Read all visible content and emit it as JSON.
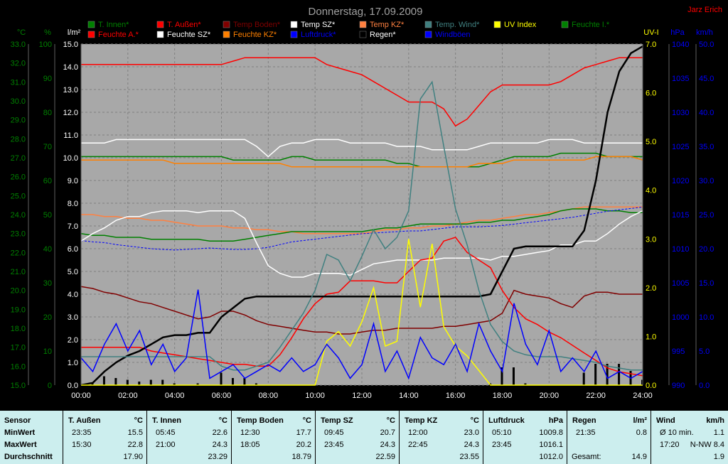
{
  "title": "Donnerstag, 17.09.2009",
  "author": "Jarz Erich",
  "legend": [
    {
      "label": "T. Innen*",
      "color": "#008000"
    },
    {
      "label": "T. Außen*",
      "color": "#ff0000"
    },
    {
      "label": "Temp Boden*",
      "color": "#800000"
    },
    {
      "label": "Temp SZ*",
      "color": "#ffffff"
    },
    {
      "label": "Temp KZ*",
      "color": "#ff8040"
    },
    {
      "label": "Temp. Wind*",
      "color": "#408080"
    },
    {
      "label": "UV Index",
      "color": "#ffff00"
    },
    {
      "label": "Feuchte I.*",
      "color": "#008000"
    },
    {
      "label": "Feuchte A.*",
      "color": "#ff0000"
    },
    {
      "label": "Feuchte SZ*",
      "color": "#ffffff"
    },
    {
      "label": "Feuchte KZ*",
      "color": "#ff8000"
    },
    {
      "label": "Luftdruck*",
      "color": "#0000ff"
    },
    {
      "label": "Regen*",
      "color": "#000000"
    },
    {
      "label": "Windböen",
      "color": "#0000ff"
    }
  ],
  "chart_data": {
    "type": "line",
    "x": [
      "00:00",
      "00:30",
      "01:00",
      "01:30",
      "02:00",
      "02:30",
      "03:00",
      "03:30",
      "04:00",
      "04:30",
      "05:00",
      "05:30",
      "06:00",
      "06:30",
      "07:00",
      "07:30",
      "08:00",
      "08:30",
      "09:00",
      "09:30",
      "10:00",
      "10:30",
      "11:00",
      "11:30",
      "12:00",
      "12:30",
      "13:00",
      "13:30",
      "14:00",
      "14:30",
      "15:00",
      "15:30",
      "16:00",
      "16:30",
      "17:00",
      "17:30",
      "18:00",
      "18:30",
      "19:00",
      "19:30",
      "20:00",
      "20:30",
      "21:00",
      "21:30",
      "22:00",
      "22:30",
      "23:00",
      "23:30",
      "24:00"
    ],
    "xticks": [
      "00:00",
      "02:00",
      "04:00",
      "06:00",
      "08:00",
      "10:00",
      "12:00",
      "14:00",
      "16:00",
      "18:00",
      "20:00",
      "22:00",
      "24:00"
    ],
    "axes": [
      {
        "unit": "°C",
        "min": 15,
        "max": 33,
        "ticks": [
          "15.0",
          "16.0",
          "17.0",
          "18.0",
          "19.0",
          "20.0",
          "21.0",
          "22.0",
          "23.0",
          "24.0",
          "25.0",
          "26.0",
          "27.0",
          "28.0",
          "29.0",
          "30.0",
          "31.0",
          "32.0",
          "33.0"
        ],
        "color": "#008000"
      },
      {
        "unit": "%",
        "min": 0,
        "max": 100,
        "ticks": [
          "0",
          "10",
          "20",
          "30",
          "40",
          "50",
          "60",
          "70",
          "80",
          "90",
          "100"
        ],
        "color": "#008000"
      },
      {
        "unit": "l/m²",
        "min": 0,
        "max": 15,
        "ticks": [
          "0.0",
          "1.0",
          "2.0",
          "3.0",
          "4.0",
          "5.0",
          "6.0",
          "7.0",
          "8.0",
          "9.0",
          "10.0",
          "11.0",
          "12.0",
          "13.0",
          "14.0",
          "15.0"
        ],
        "color": "#ffffff"
      },
      {
        "unit": "UV-I",
        "min": 0,
        "max": 7,
        "ticks": [
          "0.0",
          "1.0",
          "2.0",
          "3.0",
          "4.0",
          "5.0",
          "6.0",
          "7.0"
        ],
        "color": "#ffff00"
      },
      {
        "unit": "hPa",
        "min": 990,
        "max": 1040,
        "ticks": [
          "990",
          "995",
          "1000",
          "1005",
          "1010",
          "1015",
          "1020",
          "1025",
          "1030",
          "1035",
          "1040"
        ],
        "color": "#0000ff"
      },
      {
        "unit": "km/h",
        "min": 0,
        "max": 50,
        "ticks": [
          "0.0",
          "5.0",
          "10.0",
          "15.0",
          "20.0",
          "25.0",
          "30.0",
          "35.0",
          "40.0",
          "45.0",
          "50.0"
        ],
        "color": "#0000ff"
      }
    ],
    "series": [
      {
        "name": "Feuchte A.*",
        "axis": 1,
        "color": "#ff0000",
        "values": [
          94,
          94,
          94,
          94,
          94,
          94,
          94,
          94,
          94,
          94,
          94,
          94,
          94,
          95,
          96,
          96,
          96,
          96,
          96,
          96,
          96,
          94,
          93,
          92,
          91,
          89,
          87,
          85,
          83,
          83,
          83,
          81,
          76,
          78,
          82,
          86,
          88,
          88,
          88,
          88,
          88,
          89,
          91,
          93,
          94,
          95,
          96,
          96,
          96
        ]
      },
      {
        "name": "Feuchte SZ*",
        "axis": 1,
        "color": "#ffffff",
        "values": [
          71,
          71,
          71,
          72,
          72,
          72,
          72,
          72,
          72,
          72,
          72,
          72,
          72,
          72,
          72,
          70,
          67,
          70,
          71,
          71,
          72,
          72,
          72,
          71,
          71,
          71,
          71,
          70,
          70,
          70,
          69,
          69,
          69,
          69,
          70,
          71,
          71,
          71,
          71,
          71,
          72,
          72,
          72,
          71,
          71,
          71,
          71,
          71,
          71
        ]
      },
      {
        "name": "Feuchte I.*",
        "axis": 1,
        "color": "#008000",
        "values": [
          67,
          67,
          67,
          67,
          67,
          67,
          67,
          67,
          67,
          67,
          67,
          67,
          67,
          66,
          66,
          66,
          66,
          66,
          67,
          67,
          66,
          66,
          66,
          66,
          66,
          66,
          66,
          65,
          65,
          64,
          64,
          64,
          64,
          64,
          64,
          65,
          66,
          67,
          67,
          67,
          67,
          68,
          68,
          68,
          68,
          67,
          67,
          67,
          67
        ]
      },
      {
        "name": "Feuchte KZ*",
        "axis": 1,
        "color": "#ff8000",
        "values": [
          66,
          66,
          66,
          66,
          66,
          66,
          66,
          66,
          65,
          65,
          65,
          65,
          65,
          65,
          65,
          65,
          65,
          65,
          64,
          64,
          64,
          64,
          64,
          64,
          64,
          64,
          64,
          64,
          64,
          64,
          64,
          64,
          64,
          64,
          65,
          65,
          65,
          66,
          66,
          66,
          66,
          66,
          66,
          66,
          67,
          67,
          67,
          67,
          66
        ]
      },
      {
        "name": "Temp KZ*",
        "axis": 0,
        "color": "#ff8040",
        "values": [
          24.0,
          24.0,
          23.9,
          23.9,
          23.8,
          23.8,
          23.7,
          23.7,
          23.6,
          23.5,
          23.4,
          23.4,
          23.4,
          23.3,
          23.3,
          23.2,
          23.2,
          23.1,
          23.1,
          23.0,
          23.0,
          23.0,
          23.0,
          23.0,
          23.0,
          23.1,
          23.2,
          23.2,
          23.3,
          23.3,
          23.4,
          23.4,
          23.5,
          23.6,
          23.7,
          23.7,
          23.8,
          23.9,
          24.0,
          24.0,
          24.1,
          24.2,
          24.3,
          24.4,
          24.4,
          24.4,
          24.4,
          24.4,
          24.4
        ]
      },
      {
        "name": "T. Innen*",
        "axis": 0,
        "color": "#008000",
        "values": [
          23.0,
          22.9,
          22.9,
          22.8,
          22.8,
          22.8,
          22.7,
          22.7,
          22.7,
          22.7,
          22.7,
          22.6,
          22.6,
          22.6,
          22.7,
          22.8,
          22.9,
          23.0,
          23.1,
          23.1,
          23.1,
          23.1,
          23.1,
          23.1,
          23.1,
          23.2,
          23.3,
          23.3,
          23.4,
          23.5,
          23.5,
          23.5,
          23.5,
          23.5,
          23.6,
          23.6,
          23.7,
          23.7,
          23.8,
          23.9,
          24.0,
          24.2,
          24.3,
          24.3,
          24.3,
          24.2,
          24.2,
          24.1,
          24.1
        ]
      },
      {
        "name": "Luftdruck*",
        "axis": 4,
        "color": "#0000ff",
        "values": [
          1011.2,
          1011.0,
          1010.9,
          1010.6,
          1010.4,
          1010.2,
          1010.0,
          1009.9,
          1009.8,
          1009.9,
          1010.0,
          1010.1,
          1010.0,
          1009.9,
          1009.9,
          1010.0,
          1010.2,
          1010.6,
          1011.0,
          1011.2,
          1011.4,
          1011.6,
          1011.8,
          1012.0,
          1012.2,
          1012.3,
          1012.4,
          1012.5,
          1012.6,
          1012.6,
          1012.8,
          1013.0,
          1013.2,
          1013.2,
          1013.2,
          1013.3,
          1013.4,
          1013.6,
          1013.8,
          1014.0,
          1014.2,
          1014.4,
          1014.6,
          1014.9,
          1015.2,
          1015.5,
          1015.7,
          1015.9,
          1016.1
        ]
      },
      {
        "name": "Temp SZ*",
        "axis": 0,
        "color": "#ffffff",
        "values": [
          22.6,
          23.0,
          23.3,
          23.7,
          23.9,
          23.9,
          24.1,
          24.2,
          24.2,
          24.2,
          24.1,
          24.2,
          24.2,
          24.2,
          23.8,
          22.5,
          21.3,
          20.9,
          20.7,
          20.7,
          20.9,
          20.9,
          20.9,
          20.8,
          21.1,
          21.4,
          21.5,
          21.6,
          21.6,
          21.6,
          21.6,
          21.7,
          21.7,
          21.7,
          21.7,
          21.6,
          21.8,
          21.8,
          21.9,
          22.0,
          22.1,
          22.4,
          22.4,
          22.6,
          22.6,
          23.0,
          23.5,
          23.9,
          24.2
        ]
      },
      {
        "name": "Temp Boden*",
        "axis": 0,
        "color": "#800000",
        "values": [
          20.2,
          20.1,
          19.9,
          19.8,
          19.6,
          19.4,
          19.3,
          19.1,
          18.9,
          18.7,
          18.5,
          18.6,
          18.9,
          18.9,
          18.7,
          18.4,
          18.2,
          18.1,
          18.0,
          17.9,
          17.8,
          17.8,
          17.7,
          17.7,
          17.8,
          17.9,
          17.9,
          18.0,
          18.0,
          18.0,
          18.0,
          18.1,
          18.1,
          18.2,
          18.3,
          18.4,
          18.8,
          20.0,
          19.8,
          19.7,
          19.6,
          19.3,
          19.1,
          19.7,
          19.9,
          19.9,
          19.8,
          19.8,
          19.8
        ]
      },
      {
        "name": "T. Außen*",
        "axis": 0,
        "color": "#ff0000",
        "values": [
          17.0,
          17.0,
          17.0,
          17.0,
          17.0,
          17.0,
          16.8,
          16.7,
          16.6,
          16.5,
          16.4,
          16.3,
          16.2,
          16.1,
          16.1,
          16.0,
          16.0,
          16.6,
          17.5,
          18.5,
          19.3,
          19.8,
          19.9,
          20.5,
          20.5,
          20.5,
          20.4,
          20.4,
          21.0,
          21.6,
          21.7,
          22.6,
          22.8,
          22.0,
          21.6,
          21.2,
          20.0,
          19.1,
          18.5,
          18.2,
          17.8,
          17.5,
          17.1,
          16.7,
          16.3,
          15.9,
          15.7,
          15.6,
          15.5
        ]
      },
      {
        "name": "Regen*",
        "axis": 2,
        "color": "#000000",
        "values": [
          0.0,
          0.1,
          0.6,
          1.0,
          1.3,
          1.5,
          1.8,
          2.1,
          2.2,
          2.2,
          2.3,
          2.3,
          3.0,
          3.4,
          3.8,
          3.9,
          3.9,
          3.9,
          3.9,
          3.9,
          3.9,
          3.9,
          3.9,
          3.9,
          3.9,
          3.9,
          3.9,
          3.9,
          3.9,
          3.9,
          3.9,
          3.9,
          3.9,
          3.9,
          3.9,
          4.0,
          5.0,
          6.0,
          6.1,
          6.1,
          6.1,
          6.1,
          6.1,
          6.8,
          9.0,
          12.0,
          13.8,
          14.6,
          14.9
        ]
      },
      {
        "name": "Temp. Wind*",
        "axis": 0,
        "color": "#408080",
        "values": [
          16.5,
          16.5,
          16.5,
          16.5,
          16.5,
          16.5,
          16.5,
          16.5,
          16.5,
          16.5,
          16.5,
          16.5,
          16.0,
          15.8,
          15.8,
          16.0,
          16.2,
          17.0,
          17.9,
          18.8,
          20.0,
          21.9,
          21.6,
          20.5,
          21.8,
          23.2,
          22.2,
          22.8,
          24.2,
          30.1,
          31.0,
          27.6,
          24.3,
          22.4,
          20.0,
          18.2,
          17.3,
          16.8,
          16.6,
          16.5,
          16.5,
          16.5,
          16.4,
          16.3,
          16.2,
          16.0,
          15.9,
          15.8,
          15.8
        ]
      },
      {
        "name": "UV Index",
        "axis": 3,
        "color": "#ffff00",
        "values": [
          0,
          0,
          0,
          0,
          0,
          0,
          0,
          0,
          0,
          0,
          0,
          0,
          0,
          0,
          0,
          0,
          0,
          0,
          0,
          0,
          0,
          0.9,
          1.1,
          0.8,
          1.3,
          2.0,
          0.8,
          0.9,
          3.0,
          1.6,
          2.9,
          1.2,
          0.8,
          0.6,
          0.3,
          0,
          0,
          0,
          0,
          0,
          0,
          0,
          0,
          0,
          0,
          0,
          0,
          0,
          0
        ]
      },
      {
        "name": "Windböen",
        "axis": 5,
        "color": "#0000ff",
        "values": [
          4,
          2,
          6,
          9,
          5,
          8,
          3,
          6,
          2,
          4,
          14,
          1,
          2,
          3,
          1,
          2,
          3,
          2,
          4,
          2,
          3,
          6,
          4,
          1,
          3,
          9,
          2,
          5,
          1,
          7,
          4,
          3,
          6,
          2,
          9,
          5,
          2,
          12,
          6,
          3,
          8,
          2,
          4,
          2,
          5,
          1,
          2,
          1,
          2
        ]
      }
    ]
  },
  "stats": {
    "sensor_label": "Sensor",
    "min_label": "MinWert",
    "max_label": "MaxWert",
    "avg_label": "Durchschnitt",
    "columns": [
      {
        "name": "T. Außen",
        "unit": "°C",
        "min_time": "23:35",
        "min_val": "15.5",
        "max_time": "15:30",
        "max_val": "22.8",
        "avg": "17.90"
      },
      {
        "name": "T. Innen",
        "unit": "°C",
        "min_time": "05:45",
        "min_val": "22.6",
        "max_time": "21:00",
        "max_val": "24.3",
        "avg": "23.29"
      },
      {
        "name": "Temp Boden",
        "unit": "°C",
        "min_time": "12:30",
        "min_val": "17.7",
        "max_time": "18:05",
        "max_val": "20.2",
        "avg": "18.79"
      },
      {
        "name": "Temp SZ",
        "unit": "°C",
        "min_time": "09:45",
        "min_val": "20.7",
        "max_time": "23:45",
        "max_val": "24.3",
        "avg": "22.59"
      },
      {
        "name": "Temp KZ",
        "unit": "°C",
        "min_time": "12:00",
        "min_val": "23.0",
        "max_time": "22:45",
        "max_val": "24.3",
        "avg": "23.55"
      },
      {
        "name": "Luftdruck",
        "unit": "hPa",
        "min_time": "05:10",
        "min_val": "1009.8",
        "max_time": "23:45",
        "max_val": "1016.1",
        "avg": "1012.0"
      },
      {
        "name": "Regen",
        "unit": "l/m²",
        "min_time": "21:35",
        "min_val": "0.8",
        "max_time": "",
        "max_val": "",
        "avg_label": "Gesamt:",
        "avg": "14.9"
      },
      {
        "name": "Wind",
        "unit": "km/h",
        "min_time": "Ø 10 min.",
        "min_val": "1.1",
        "max_time": "17:20",
        "max_val": "N-NW 8.4",
        "avg": "1.9"
      }
    ]
  }
}
